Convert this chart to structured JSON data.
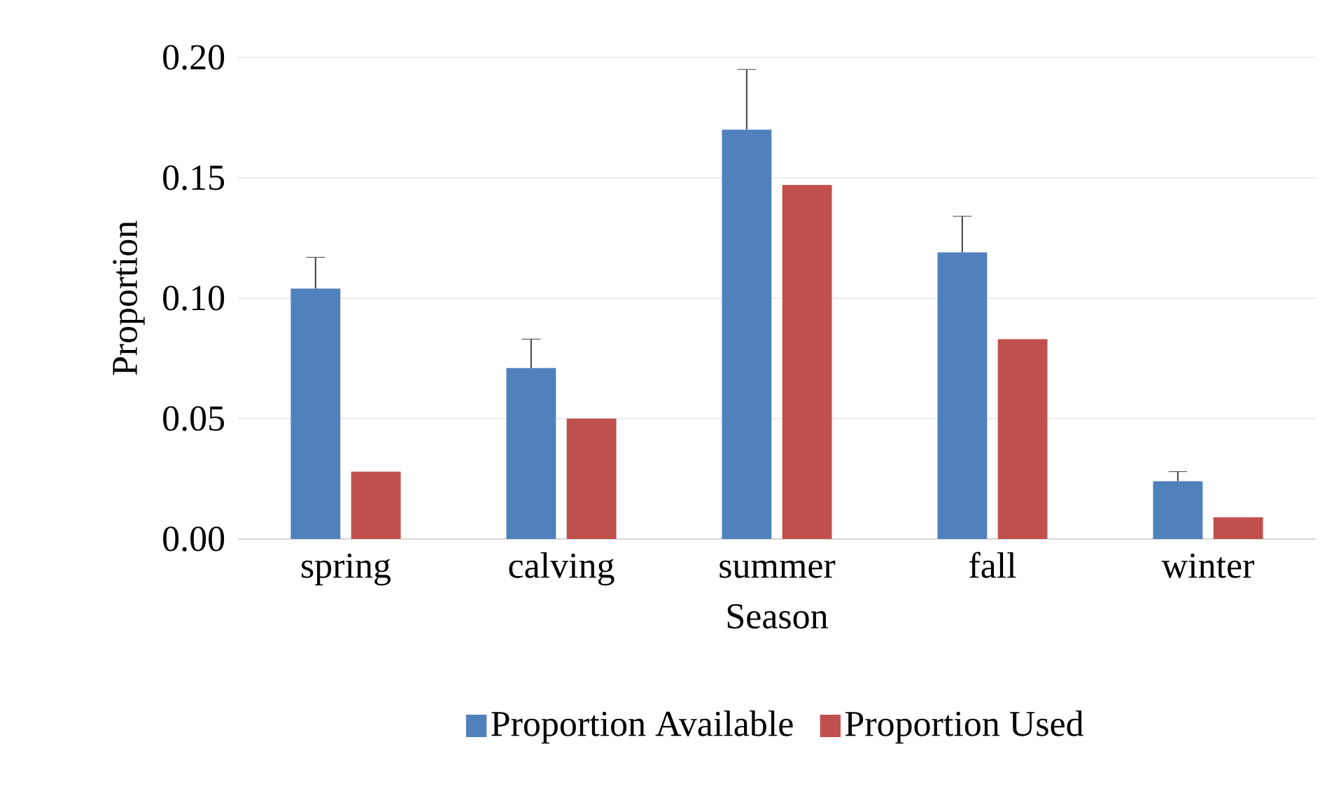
{
  "chart_data": {
    "type": "bar",
    "xlabel": "Season",
    "ylabel": "Proportion",
    "categories": [
      "spring",
      "calving",
      "summer",
      "fall",
      "winter"
    ],
    "series": [
      {
        "name": "Proportion Available",
        "color": "#4f81bd",
        "values": [
          0.104,
          0.071,
          0.17,
          0.119,
          0.024
        ],
        "errors": [
          [
            0.104,
            0.117
          ],
          [
            0.071,
            0.083
          ],
          [
            0.17,
            0.195
          ],
          [
            0.119,
            0.134
          ],
          [
            0.024,
            0.028
          ]
        ]
      },
      {
        "name": "Proportion Used",
        "color": "#c0504d",
        "values": [
          0.028,
          0.05,
          0.147,
          0.083,
          0.009
        ]
      }
    ],
    "ylim": [
      0,
      0.2
    ],
    "yticks": [
      {
        "value": 0,
        "label": "0.00"
      },
      {
        "value": 0.05,
        "label": "0.05"
      },
      {
        "value": 0.1,
        "label": "0.10"
      },
      {
        "value": 0.15,
        "label": "0.15"
      },
      {
        "value": 0.2,
        "label": "0.20"
      }
    ],
    "grid": "y",
    "legend": "bottom"
  }
}
